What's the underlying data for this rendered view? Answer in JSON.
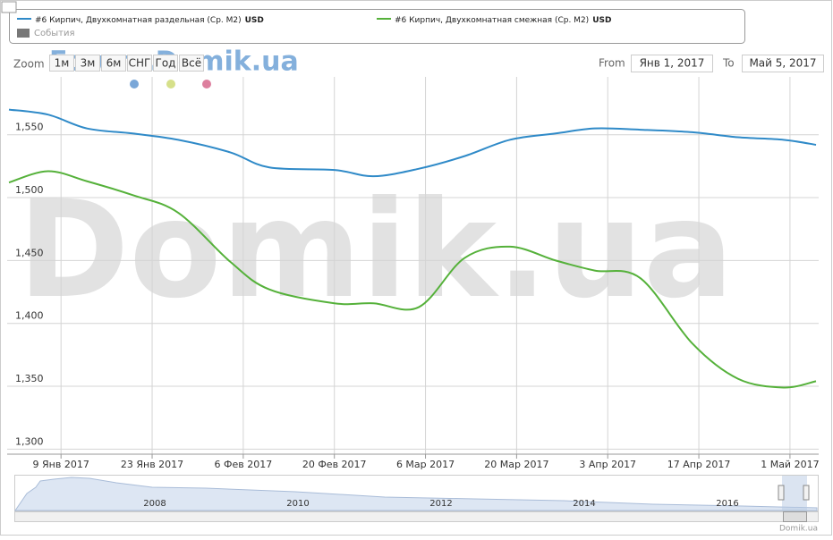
{
  "chart_data": {
    "type": "line",
    "unit": "USD",
    "events_label": "События",
    "zoom": {
      "label": "Zoom",
      "buttons": [
        "1м",
        "3м",
        "6м",
        "СНГ",
        "Год",
        "Всё"
      ]
    },
    "range": {
      "from_label": "From",
      "from": "Янв 1, 2017",
      "to_label": "To",
      "to": "Май 5, 2017"
    },
    "watermark": "Domik.ua",
    "forum_watermark": "Forum.Domik.ua",
    "credits": "Domik.ua",
    "navigator_labels": [
      "2008",
      "2010",
      "2012",
      "2014",
      "2016"
    ],
    "x": [
      "2017-01-01",
      "2017-01-07",
      "2017-01-13",
      "2017-01-20",
      "2017-01-27",
      "2017-02-04",
      "2017-02-10",
      "2017-02-20",
      "2017-02-26",
      "2017-03-05",
      "2017-03-12",
      "2017-03-19",
      "2017-03-26",
      "2017-04-01",
      "2017-04-08",
      "2017-04-16",
      "2017-04-23",
      "2017-04-30",
      "2017-05-05"
    ],
    "xlim": [
      "2017-01-01",
      "2017-05-05"
    ],
    "xticks": [
      {
        "value": "2017-01-09",
        "label": "9 Янв 2017"
      },
      {
        "value": "2017-01-23",
        "label": "23 Янв 2017"
      },
      {
        "value": "2017-02-06",
        "label": "6 Фев 2017"
      },
      {
        "value": "2017-02-20",
        "label": "20 Фев 2017"
      },
      {
        "value": "2017-03-06",
        "label": "6 Мар 2017"
      },
      {
        "value": "2017-03-20",
        "label": "20 Мар 2017"
      },
      {
        "value": "2017-04-03",
        "label": "3 Апр 2017"
      },
      {
        "value": "2017-04-17",
        "label": "17 Апр 2017"
      },
      {
        "value": "2017-05-01",
        "label": "1 Май 2017"
      }
    ],
    "ylim": [
      1296,
      1596
    ],
    "yticks": [
      {
        "value": 1300,
        "label": "1,300"
      },
      {
        "value": 1350,
        "label": "1,350"
      },
      {
        "value": 1400,
        "label": "1,400"
      },
      {
        "value": 1450,
        "label": "1,450"
      },
      {
        "value": 1500,
        "label": "1,500"
      },
      {
        "value": 1550,
        "label": "1,550"
      }
    ],
    "grid": true,
    "series": [
      {
        "name": "#6 Кирпич, Двухкомнатная раздельная (Ср. М2)",
        "color": "#2f8ac8",
        "values": [
          1570,
          1566,
          1555,
          1551,
          1546,
          1536,
          1524,
          1522,
          1517,
          1523,
          1533,
          1546,
          1551,
          1555,
          1554,
          1552,
          1548,
          1546,
          1542
        ]
      },
      {
        "name": "#6 Кирпич, Двухкомнатная смежная (Ср. М2)",
        "color": "#55b13a",
        "values": [
          1512,
          1521,
          1513,
          1502,
          1488,
          1449,
          1427,
          1416,
          1416,
          1413,
          1452,
          1461,
          1450,
          1442,
          1436,
          1384,
          1356,
          1349,
          1354
        ]
      }
    ]
  }
}
